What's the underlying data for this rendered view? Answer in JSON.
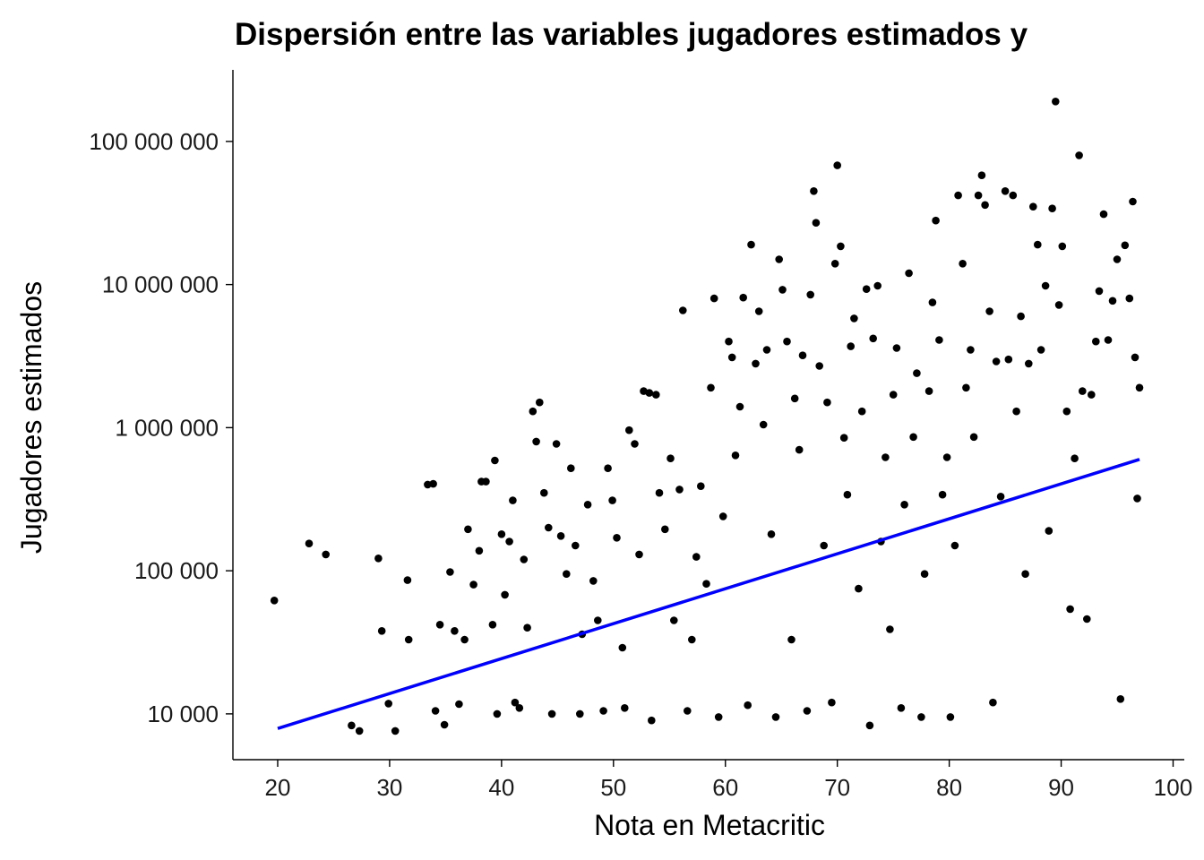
{
  "chart_data": {
    "type": "scatter",
    "title": "Dispersión entre las variables jugadores estimados y",
    "xlabel": "Nota en Metacritic",
    "ylabel": "Jugadores estimados",
    "xlim": [
      16,
      101
    ],
    "ylim_log10": [
      3.68,
      8.5
    ],
    "y_scale": "log10",
    "grid": false,
    "x_ticks": [
      20,
      30,
      40,
      50,
      60,
      70,
      80,
      90,
      100
    ],
    "x_tick_labels": [
      "20",
      "30",
      "40",
      "50",
      "60",
      "70",
      "80",
      "90",
      "100"
    ],
    "y_ticks": [
      10000,
      100000,
      1000000,
      10000000,
      100000000
    ],
    "y_tick_labels": [
      "10 000",
      "100 000",
      "1 000 000",
      "10 000 000",
      "100 000 000"
    ],
    "point_color": "#000000",
    "trend_color": "#0000ff",
    "trend_line": {
      "x": [
        20,
        97
      ],
      "y": [
        7900,
        600000
      ]
    },
    "points": [
      [
        19.7,
        62000
      ],
      [
        22.8,
        155000
      ],
      [
        24.3,
        130000
      ],
      [
        26.6,
        8300
      ],
      [
        27.3,
        7600
      ],
      [
        29.0,
        122000
      ],
      [
        29.3,
        38000
      ],
      [
        29.9,
        11800
      ],
      [
        30.5,
        7600
      ],
      [
        31.6,
        86000
      ],
      [
        31.7,
        33000
      ],
      [
        33.4,
        400000
      ],
      [
        33.9,
        405000
      ],
      [
        34.1,
        10500
      ],
      [
        34.5,
        42000
      ],
      [
        34.9,
        8400
      ],
      [
        35.4,
        98000
      ],
      [
        35.8,
        38000
      ],
      [
        36.2,
        11700
      ],
      [
        36.7,
        33000
      ],
      [
        37.0,
        195000
      ],
      [
        37.5,
        80000
      ],
      [
        38.0,
        138000
      ],
      [
        38.2,
        420000
      ],
      [
        38.6,
        420000
      ],
      [
        39.2,
        42000
      ],
      [
        39.4,
        590000
      ],
      [
        39.6,
        10000
      ],
      [
        40.0,
        180000
      ],
      [
        40.3,
        68000
      ],
      [
        40.7,
        160000
      ],
      [
        41.0,
        310000
      ],
      [
        41.2,
        12000
      ],
      [
        41.6,
        11000
      ],
      [
        42.0,
        120000
      ],
      [
        42.3,
        40000
      ],
      [
        42.8,
        1300000
      ],
      [
        43.1,
        800000
      ],
      [
        43.4,
        1500000
      ],
      [
        43.8,
        350000
      ],
      [
        44.2,
        200000
      ],
      [
        44.5,
        10000
      ],
      [
        44.9,
        770000
      ],
      [
        45.3,
        175000
      ],
      [
        45.8,
        95000
      ],
      [
        46.2,
        520000
      ],
      [
        46.6,
        150000
      ],
      [
        47.0,
        10000
      ],
      [
        47.2,
        36000
      ],
      [
        47.7,
        290000
      ],
      [
        48.2,
        85000
      ],
      [
        48.6,
        45000
      ],
      [
        49.1,
        10500
      ],
      [
        49.5,
        520000
      ],
      [
        49.9,
        310000
      ],
      [
        50.3,
        170000
      ],
      [
        50.8,
        29000
      ],
      [
        51.0,
        11000
      ],
      [
        51.4,
        960000
      ],
      [
        51.9,
        770000
      ],
      [
        52.3,
        130000
      ],
      [
        52.7,
        1800000
      ],
      [
        53.2,
        1750000
      ],
      [
        53.4,
        9000
      ],
      [
        53.8,
        1700000
      ],
      [
        54.1,
        350000
      ],
      [
        54.6,
        195000
      ],
      [
        55.1,
        610000
      ],
      [
        55.4,
        45000
      ],
      [
        55.9,
        370000
      ],
      [
        56.2,
        6600000
      ],
      [
        56.6,
        10500
      ],
      [
        57.0,
        33000
      ],
      [
        57.4,
        125000
      ],
      [
        57.8,
        390000
      ],
      [
        58.3,
        81000
      ],
      [
        58.7,
        1900000
      ],
      [
        59.0,
        8000000
      ],
      [
        59.4,
        9500
      ],
      [
        59.8,
        240000
      ],
      [
        60.3,
        4000000
      ],
      [
        60.6,
        3100000
      ],
      [
        60.9,
        640000
      ],
      [
        61.3,
        1400000
      ],
      [
        61.6,
        8100000
      ],
      [
        62.0,
        11500
      ],
      [
        62.3,
        19000000
      ],
      [
        62.7,
        2800000
      ],
      [
        63.0,
        6500000
      ],
      [
        63.4,
        1050000
      ],
      [
        63.7,
        3500000
      ],
      [
        64.1,
        180000
      ],
      [
        64.5,
        9500
      ],
      [
        64.8,
        15000000
      ],
      [
        65.1,
        9200000
      ],
      [
        65.5,
        4000000
      ],
      [
        65.9,
        33000
      ],
      [
        66.2,
        1600000
      ],
      [
        66.6,
        700000
      ],
      [
        66.9,
        3200000
      ],
      [
        67.3,
        10500
      ],
      [
        67.6,
        8500000
      ],
      [
        67.9,
        45000000
      ],
      [
        68.1,
        27000000
      ],
      [
        68.4,
        2700000
      ],
      [
        68.8,
        150000
      ],
      [
        69.1,
        1500000
      ],
      [
        69.5,
        12000
      ],
      [
        69.8,
        14000000
      ],
      [
        70.0,
        68000000
      ],
      [
        70.3,
        18500000
      ],
      [
        70.6,
        850000
      ],
      [
        70.9,
        340000
      ],
      [
        71.2,
        3700000
      ],
      [
        71.5,
        5800000
      ],
      [
        71.9,
        75000
      ],
      [
        72.2,
        1300000
      ],
      [
        72.6,
        9300000
      ],
      [
        72.9,
        8300
      ],
      [
        73.2,
        4200000
      ],
      [
        73.6,
        9800000
      ],
      [
        73.9,
        160000
      ],
      [
        74.3,
        620000
      ],
      [
        74.7,
        39000
      ],
      [
        75.0,
        1700000
      ],
      [
        75.3,
        3600000
      ],
      [
        75.7,
        11000
      ],
      [
        76.0,
        290000
      ],
      [
        76.4,
        12000000
      ],
      [
        76.8,
        860000
      ],
      [
        77.1,
        2400000
      ],
      [
        77.5,
        9500
      ],
      [
        77.8,
        95000
      ],
      [
        78.2,
        1800000
      ],
      [
        78.5,
        7500000
      ],
      [
        78.8,
        28000000
      ],
      [
        79.1,
        4100000
      ],
      [
        79.4,
        340000
      ],
      [
        79.8,
        620000
      ],
      [
        80.1,
        9500
      ],
      [
        80.5,
        150000
      ],
      [
        80.8,
        42000000
      ],
      [
        81.2,
        14000000
      ],
      [
        81.5,
        1900000
      ],
      [
        81.9,
        3500000
      ],
      [
        82.2,
        860000
      ],
      [
        82.6,
        42000000
      ],
      [
        82.9,
        58000000
      ],
      [
        83.2,
        36000000
      ],
      [
        83.6,
        6500000
      ],
      [
        83.9,
        12000
      ],
      [
        84.2,
        2900000
      ],
      [
        84.6,
        330000
      ],
      [
        85.0,
        45000000
      ],
      [
        85.3,
        3000000
      ],
      [
        85.7,
        42000000
      ],
      [
        86.0,
        1300000
      ],
      [
        86.4,
        6000000
      ],
      [
        86.8,
        95000
      ],
      [
        87.1,
        2800000
      ],
      [
        87.5,
        35000000
      ],
      [
        87.9,
        19000000
      ],
      [
        88.2,
        3500000
      ],
      [
        88.6,
        9800000
      ],
      [
        88.9,
        190000
      ],
      [
        89.2,
        34000000
      ],
      [
        89.5,
        190000000
      ],
      [
        89.8,
        7200000
      ],
      [
        90.1,
        18500000
      ],
      [
        90.5,
        1300000
      ],
      [
        90.8,
        54000
      ],
      [
        91.2,
        610000
      ],
      [
        91.6,
        80000000
      ],
      [
        91.9,
        1800000
      ],
      [
        92.3,
        46000
      ],
      [
        92.7,
        1700000
      ],
      [
        93.1,
        4000000
      ],
      [
        93.4,
        9000000
      ],
      [
        93.8,
        31000000
      ],
      [
        94.2,
        4100000
      ],
      [
        94.6,
        7700000
      ],
      [
        95.0,
        15000000
      ],
      [
        95.3,
        12700
      ],
      [
        95.7,
        18800000
      ],
      [
        96.1,
        8000000
      ],
      [
        96.4,
        38000000
      ],
      [
        96.6,
        3100000
      ],
      [
        96.8,
        320000
      ],
      [
        97.0,
        1900000
      ]
    ]
  }
}
